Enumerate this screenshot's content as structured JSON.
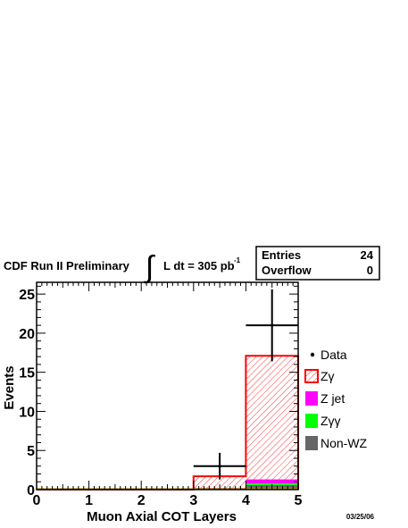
{
  "header": {
    "experiment": "CDF Run II Preliminary",
    "integral_symbol": "∫",
    "lumi_text": "L dt = 305 pb",
    "lumi_exp": "-1"
  },
  "stats_box": {
    "entries_label": "Entries",
    "entries_value": "24",
    "overflow_label": "Overflow",
    "overflow_value": "0"
  },
  "date_stamp": "03/25/06",
  "colors": {
    "data": "#000000",
    "zgamma": "#ff0000",
    "zjet": "#ff00ff",
    "zgg": "#00ff00",
    "nonwz": "#666666"
  },
  "chart_data": {
    "type": "bar",
    "xlabel": "Muon Axial COT Layers",
    "ylabel": "Events",
    "xlim": [
      0,
      5
    ],
    "ylim": [
      0,
      26.5
    ],
    "x_ticks": [
      "0",
      "1",
      "2",
      "3",
      "4",
      "5"
    ],
    "y_ticks": [
      "0",
      "5",
      "10",
      "15",
      "20",
      "25"
    ],
    "bin_edges": [
      0,
      1,
      2,
      3,
      4,
      5
    ],
    "series": [
      {
        "name": "Non-WZ",
        "values": [
          0,
          0,
          0,
          0.1,
          0.6
        ]
      },
      {
        "name": "Zγγ",
        "values": [
          0,
          0,
          0,
          0.05,
          0.2
        ]
      },
      {
        "name": "Z jet",
        "values": [
          0,
          0,
          0,
          0.05,
          0.5
        ]
      },
      {
        "name": "Zγ",
        "values": [
          0,
          0,
          0,
          1.5,
          15.8
        ]
      }
    ],
    "data_points": [
      {
        "x": 3.5,
        "y": 3,
        "yerr": 1.7
      },
      {
        "x": 4.5,
        "y": 21,
        "yerr": 4.6
      }
    ],
    "legend": [
      {
        "label": "Data",
        "type": "marker"
      },
      {
        "label": "Zγ",
        "type": "hatch"
      },
      {
        "label": "Z jet",
        "type": "fill"
      },
      {
        "label": "Zγγ",
        "type": "fill"
      },
      {
        "label": "Non-WZ",
        "type": "fill"
      }
    ],
    "legend_position": "right"
  }
}
